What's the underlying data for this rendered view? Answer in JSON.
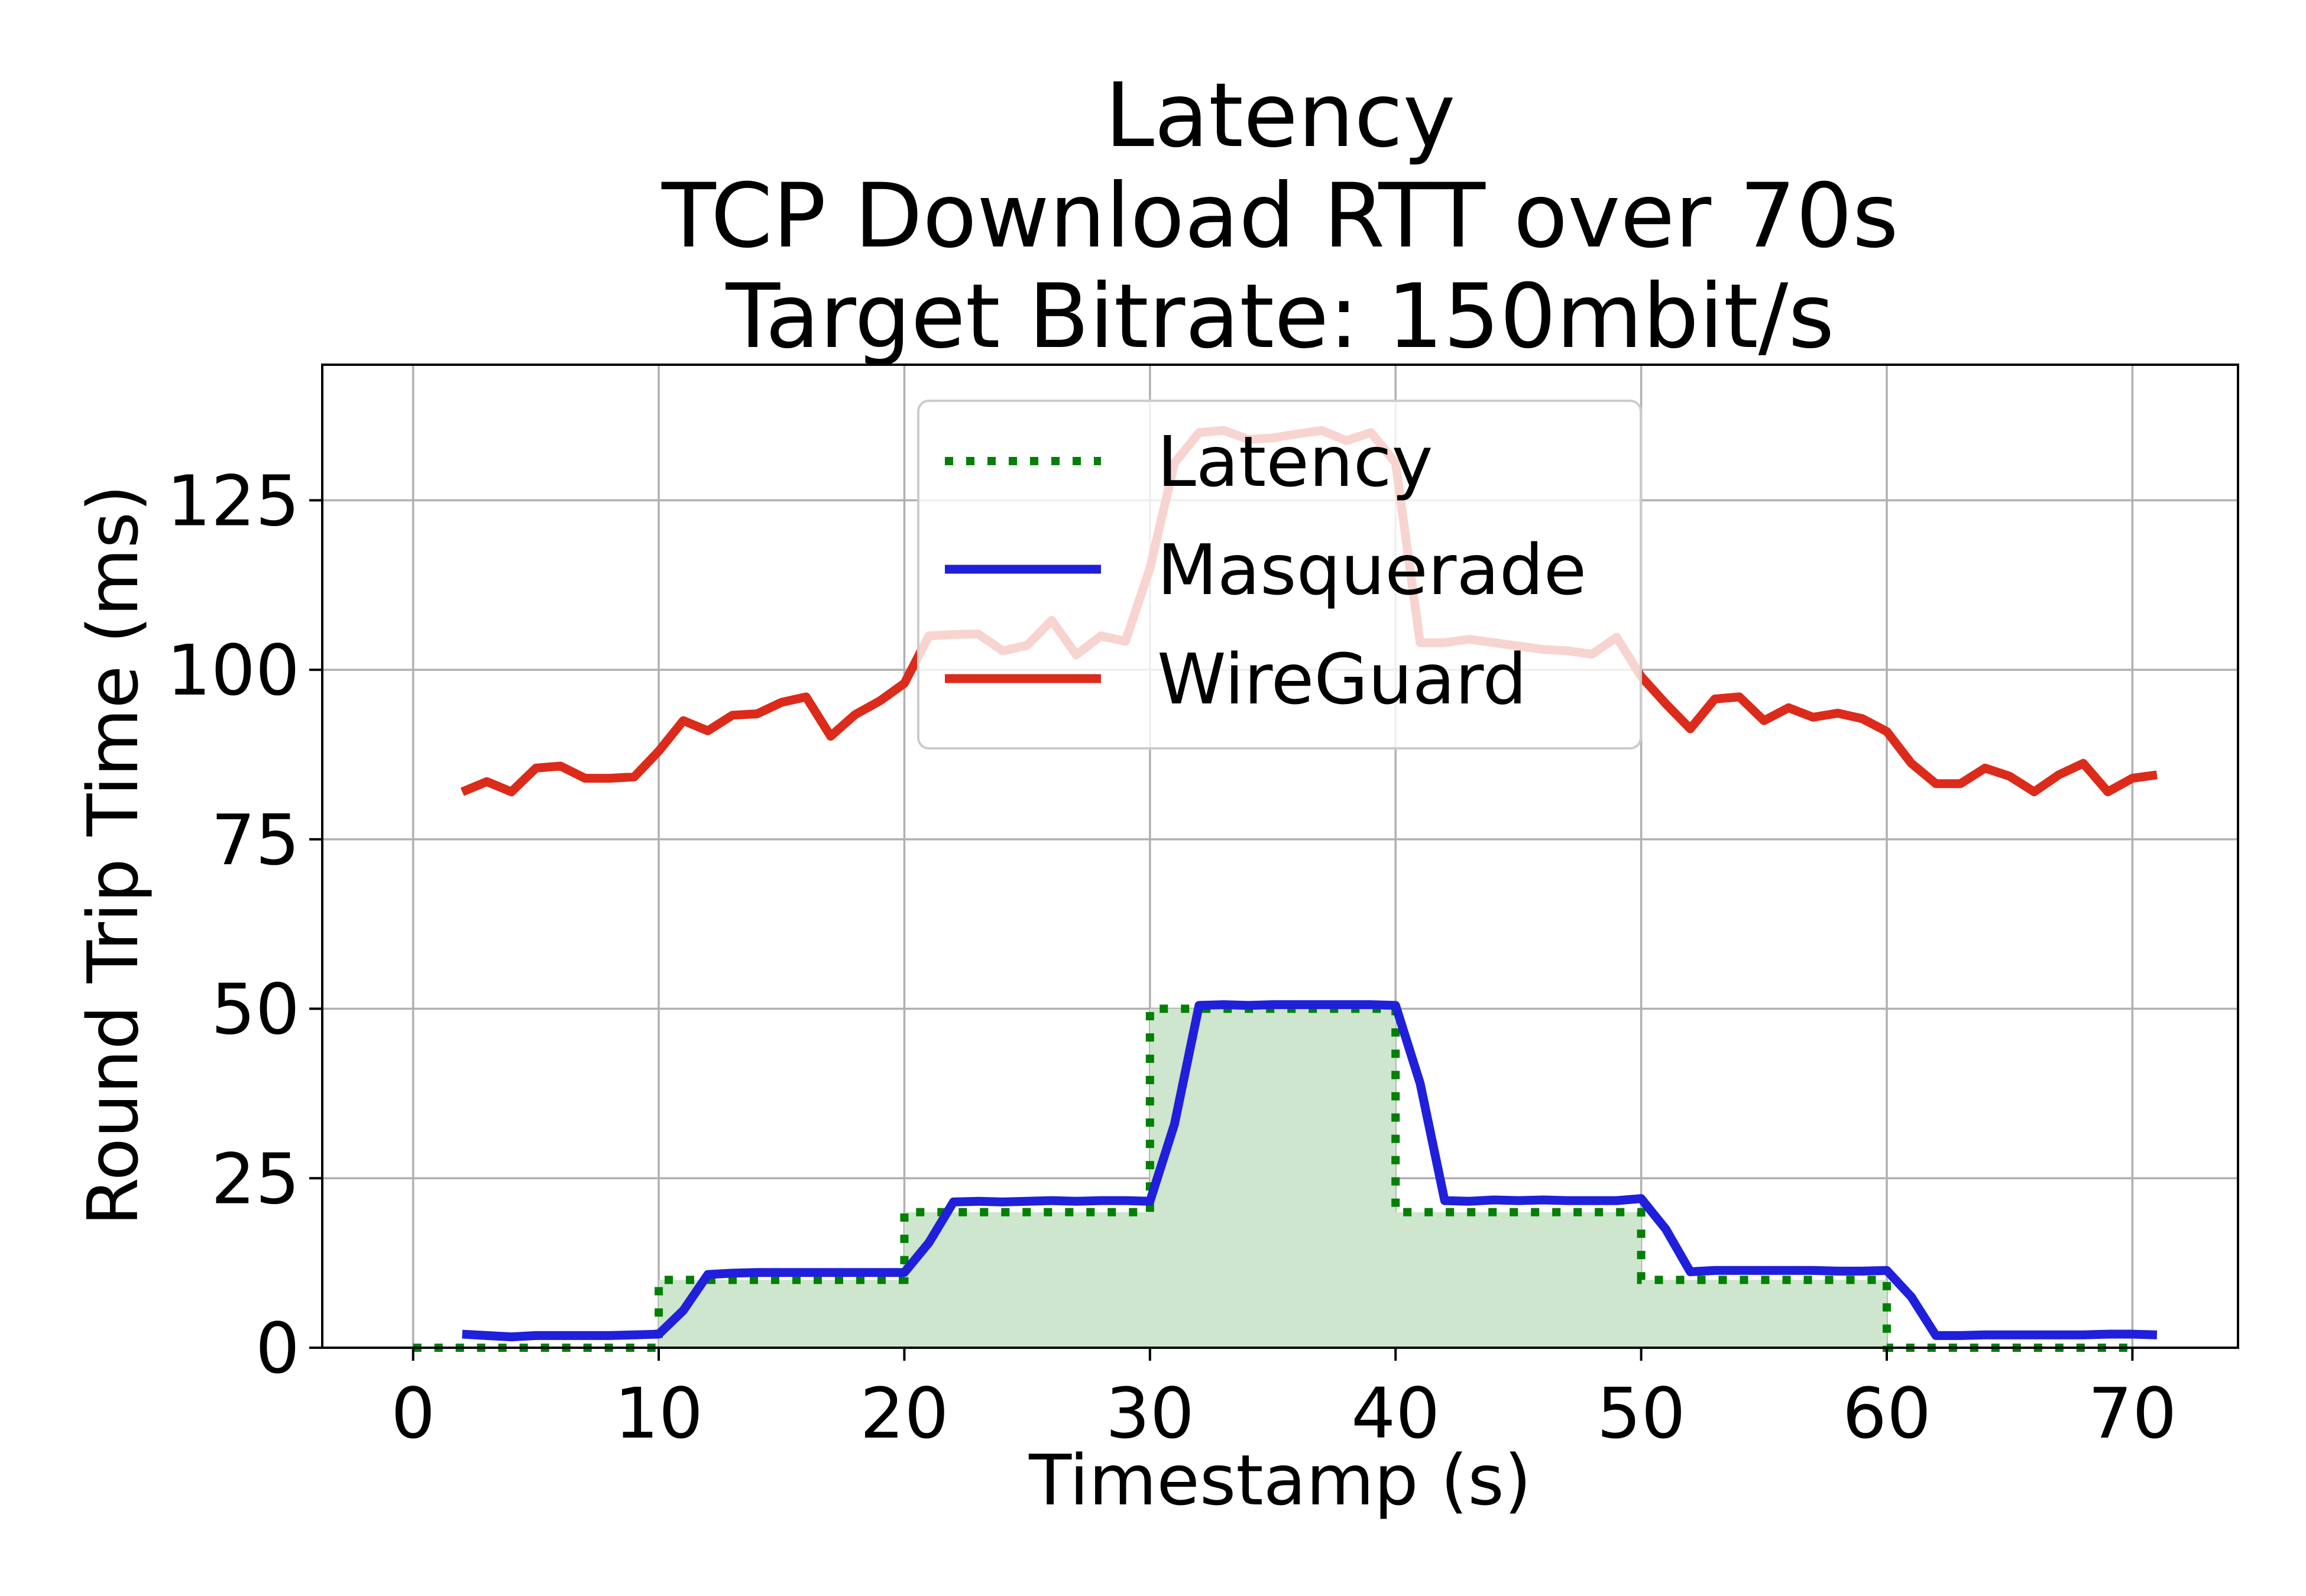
{
  "chart_data": {
    "type": "line",
    "title": [
      "Latency",
      "TCP Download RTT over 70s",
      "Target Bitrate: 150mbit/s"
    ],
    "xlabel": "Timestamp (s)",
    "ylabel": "Round Trip Time (ms)",
    "xlim": [
      -3.7,
      74.3
    ],
    "ylim": [
      0,
      145
    ],
    "xticks": [
      0,
      10,
      20,
      30,
      40,
      50,
      60,
      70
    ],
    "yticks": [
      0,
      25,
      50,
      75,
      100,
      125
    ],
    "grid": true,
    "legend_position": "top-center",
    "legend": [
      "Latency",
      "Masquerade",
      "WireGuard"
    ],
    "series": [
      {
        "name": "Latency",
        "style": "dotted-step-filled",
        "color": "#008000",
        "fill_color": "#cde6cd",
        "x": [
          0,
          10,
          10,
          20,
          20,
          30,
          30,
          40,
          40,
          50,
          50,
          60,
          60,
          70
        ],
        "y": [
          0,
          0,
          10,
          10,
          20,
          20,
          50,
          50,
          20,
          20,
          10,
          10,
          0,
          0
        ]
      },
      {
        "name": "Masquerade",
        "style": "solid",
        "color": "#1f1fdc",
        "x": [
          2,
          3,
          4,
          5,
          6,
          7,
          8,
          9,
          10,
          11,
          12,
          13,
          14,
          15,
          16,
          17,
          18,
          19,
          20,
          21,
          22,
          23,
          24,
          25,
          26,
          27,
          28,
          29,
          30,
          31,
          32,
          33,
          34,
          35,
          36,
          37,
          38,
          39,
          40,
          41,
          42,
          43,
          44,
          45,
          46,
          47,
          48,
          49,
          50,
          51,
          52,
          53,
          54,
          55,
          56,
          57,
          58,
          59,
          60,
          61,
          62,
          63,
          64,
          65,
          66,
          67,
          68,
          69,
          70,
          71
        ],
        "y": [
          2,
          1.8,
          1.6,
          1.8,
          1.8,
          1.8,
          1.8,
          1.9,
          2,
          5.5,
          10.8,
          11,
          11.1,
          11.1,
          11.1,
          11.1,
          11.1,
          11.1,
          11.1,
          15.5,
          21.5,
          21.6,
          21.5,
          21.6,
          21.7,
          21.6,
          21.7,
          21.7,
          21.6,
          33,
          50.5,
          50.6,
          50.5,
          50.6,
          50.6,
          50.6,
          50.6,
          50.6,
          50.5,
          39,
          21.7,
          21.6,
          21.8,
          21.7,
          21.8,
          21.7,
          21.7,
          21.7,
          22,
          17.5,
          11.2,
          11.4,
          11.4,
          11.4,
          11.4,
          11.4,
          11.3,
          11.3,
          11.4,
          7.5,
          1.8,
          1.8,
          1.9,
          1.9,
          1.9,
          1.9,
          1.9,
          2,
          2,
          1.9
        ]
      },
      {
        "name": "WireGuard",
        "style": "solid",
        "color": "#dc2b1a",
        "x": [
          2,
          3,
          4,
          5,
          6,
          7,
          8,
          9,
          10,
          11,
          12,
          13,
          14,
          15,
          16,
          17,
          18,
          19,
          20,
          21,
          22,
          23,
          24,
          25,
          26,
          27,
          28,
          29,
          30,
          31,
          32,
          33,
          34,
          35,
          36,
          37,
          38,
          39,
          40,
          41,
          42,
          43,
          44,
          45,
          46,
          47,
          48,
          49,
          50,
          51,
          52,
          53,
          54,
          55,
          56,
          57,
          58,
          59,
          60,
          61,
          62,
          63,
          64,
          65,
          66,
          67,
          68,
          69,
          70,
          71
        ],
        "y": [
          82,
          83.5,
          82,
          85.5,
          85.8,
          84,
          84,
          84.2,
          88,
          92.5,
          91,
          93.3,
          93.5,
          95.2,
          96,
          90.2,
          93.4,
          95.4,
          98,
          105,
          105.2,
          105.3,
          102.8,
          103.6,
          107.3,
          102.2,
          105,
          104.2,
          115,
          130.5,
          135,
          135.3,
          134,
          134.2,
          134.8,
          135.3,
          133.8,
          135,
          130.5,
          104,
          104,
          104.5,
          104,
          103.5,
          103,
          102.8,
          102.3,
          104.8,
          99,
          95,
          91.3,
          95.7,
          96,
          92.5,
          94.4,
          93,
          93.6,
          92.8,
          90.9,
          86.2,
          83.2,
          83.2,
          85.5,
          84.3,
          82,
          84.5,
          86.2,
          82,
          84,
          84.5
        ]
      }
    ]
  }
}
